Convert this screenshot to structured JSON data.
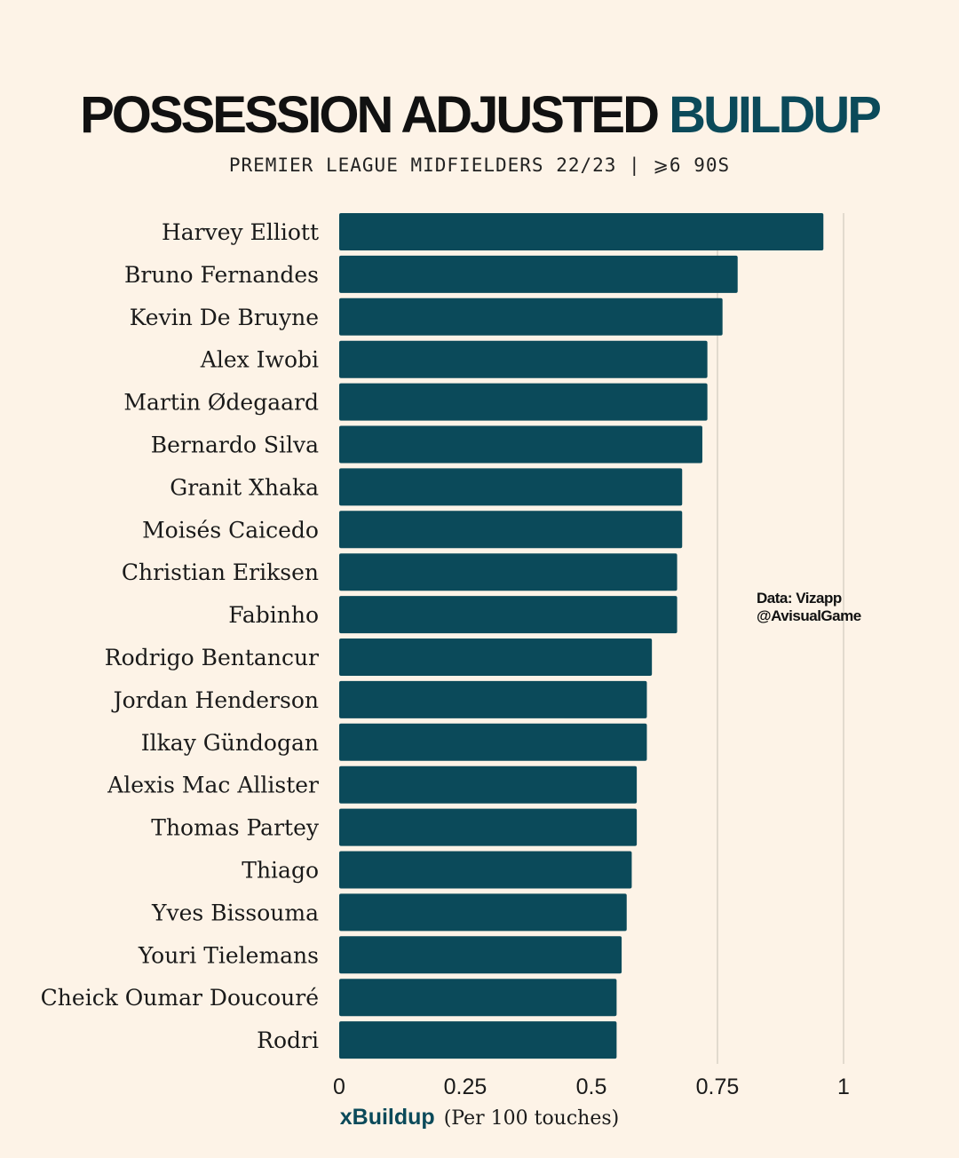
{
  "chart_data": {
    "type": "bar",
    "orientation": "horizontal",
    "title": "POSSESSION ADJUSTED",
    "title_accent": "BUILDUP",
    "subtitle": "PREMIER LEAGUE MIDFIELDERS 22/23  |  ⩾6 90S",
    "xlabel": "xBuildup",
    "xlabel_unit": "(Per 100 touches)",
    "xlim": [
      0,
      1
    ],
    "xticks": [
      {
        "value": 0,
        "label": "0"
      },
      {
        "value": 0.25,
        "label": "0.25"
      },
      {
        "value": 0.5,
        "label": "0.5"
      },
      {
        "value": 0.75,
        "label": "0.75"
      },
      {
        "value": 1,
        "label": "1"
      }
    ],
    "gridlines": [
      0.75,
      1
    ],
    "categories": [
      "Harvey Elliott",
      "Bruno Fernandes",
      "Kevin De Bruyne",
      "Alex Iwobi",
      "Martin Ødegaard",
      "Bernardo Silva",
      "Granit Xhaka",
      "Moisés Caicedo",
      "Christian Eriksen",
      "Fabinho",
      "Rodrigo Bentancur",
      "Jordan Henderson",
      "Ilkay Gündogan",
      "Alexis Mac Allister",
      "Thomas Partey",
      "Thiago",
      "Yves Bissouma",
      "Youri Tielemans",
      "Cheick Oumar Doucouré",
      "Rodri"
    ],
    "values": [
      0.96,
      0.79,
      0.76,
      0.73,
      0.73,
      0.72,
      0.68,
      0.68,
      0.67,
      0.67,
      0.62,
      0.61,
      0.61,
      0.59,
      0.59,
      0.58,
      0.57,
      0.56,
      0.55,
      0.55
    ]
  },
  "credit": {
    "line1": "Data: Vizapp",
    "line2": "@AvisualGame"
  },
  "colors": {
    "bar": "#0b4a5a",
    "background": "#fdf3e7",
    "grid": "#d9d2c6",
    "accent": "#0b4a5a"
  }
}
